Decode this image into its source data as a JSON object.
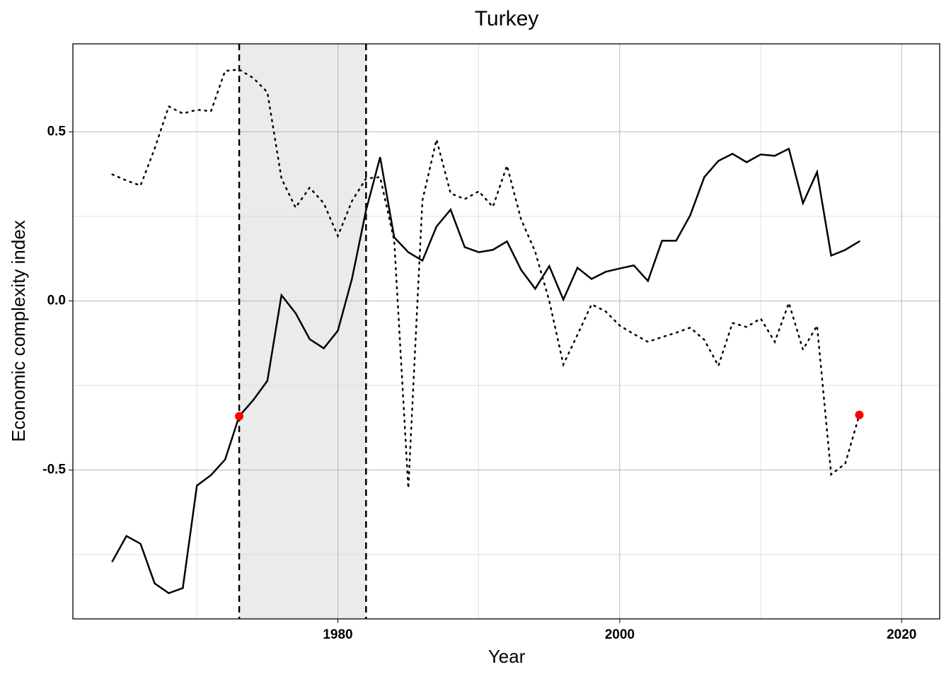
{
  "chart_data": {
    "type": "line",
    "title": "Turkey",
    "x_label": "Year",
    "y_label": "Economic complexity index",
    "x": [
      1964,
      1965,
      1966,
      1967,
      1968,
      1969,
      1970,
      1971,
      1972,
      1973,
      1974,
      1975,
      1976,
      1977,
      1978,
      1979,
      1980,
      1981,
      1982,
      1983,
      1984,
      1985,
      1986,
      1987,
      1988,
      1989,
      1990,
      1991,
      1992,
      1993,
      1994,
      1995,
      1996,
      1997,
      1998,
      1999,
      2000,
      2001,
      2002,
      2003,
      2004,
      2005,
      2006,
      2007,
      2008,
      2009,
      2010,
      2011,
      2012,
      2013,
      2014,
      2015,
      2016,
      2017
    ],
    "series": [
      {
        "color": "#000000",
        "dash": "solid",
        "values": [
          -0.77,
          -0.695,
          -0.718,
          -0.835,
          -0.864,
          -0.849,
          -0.546,
          -0.515,
          -0.469,
          -0.341,
          -0.293,
          -0.236,
          0.017,
          -0.036,
          -0.113,
          -0.14,
          -0.088,
          0.065,
          0.268,
          0.425,
          0.188,
          0.144,
          0.119,
          0.22,
          0.27,
          0.159,
          0.144,
          0.151,
          0.176,
          0.092,
          0.036,
          0.103,
          0.004,
          0.098,
          0.065,
          0.086,
          0.096,
          0.105,
          0.059,
          0.178,
          0.178,
          0.253,
          0.366,
          0.414,
          0.435,
          0.41,
          0.433,
          0.429,
          0.45,
          0.289,
          0.381,
          0.134,
          0.151,
          0.176
        ]
      },
      {
        "color": "#000000",
        "dash": "dotted",
        "values": [
          0.374,
          0.356,
          0.341,
          0.45,
          0.575,
          0.554,
          0.565,
          0.561,
          0.68,
          0.684,
          0.659,
          0.617,
          0.362,
          0.276,
          0.335,
          0.289,
          0.192,
          0.295,
          0.362,
          0.366,
          0.178,
          -0.554,
          0.297,
          0.477,
          0.318,
          0.301,
          0.324,
          0.278,
          0.4,
          0.241,
          0.146,
          0.0,
          -0.188,
          -0.1,
          -0.01,
          -0.031,
          -0.073,
          -0.098,
          -0.121,
          -0.107,
          -0.094,
          -0.079,
          -0.115,
          -0.192,
          -0.065,
          -0.077,
          -0.052,
          -0.121,
          -0.006,
          -0.144,
          -0.073,
          -0.513,
          -0.481,
          -0.337
        ]
      }
    ],
    "points": {
      "color": "#ff0000",
      "x": [
        1973,
        2017
      ],
      "values": [
        -0.341,
        -0.337
      ]
    },
    "shade": [
      1973,
      1982
    ],
    "shade_color": "#ebebeb",
    "vlines": [
      1973,
      1982
    ],
    "xlim": [
      1961.2,
      2022.7
    ],
    "ylim": [
      -0.94,
      0.76
    ],
    "xticks": [
      1980,
      2000,
      2020
    ],
    "yticks": [
      -0.5,
      {
        "value": 0,
        "label": "0.0"
      },
      0.5
    ],
    "xminor": [
      1970,
      1990,
      2010
    ],
    "yminor": [
      -0.75,
      -0.25,
      0.25
    ],
    "grid": true
  }
}
